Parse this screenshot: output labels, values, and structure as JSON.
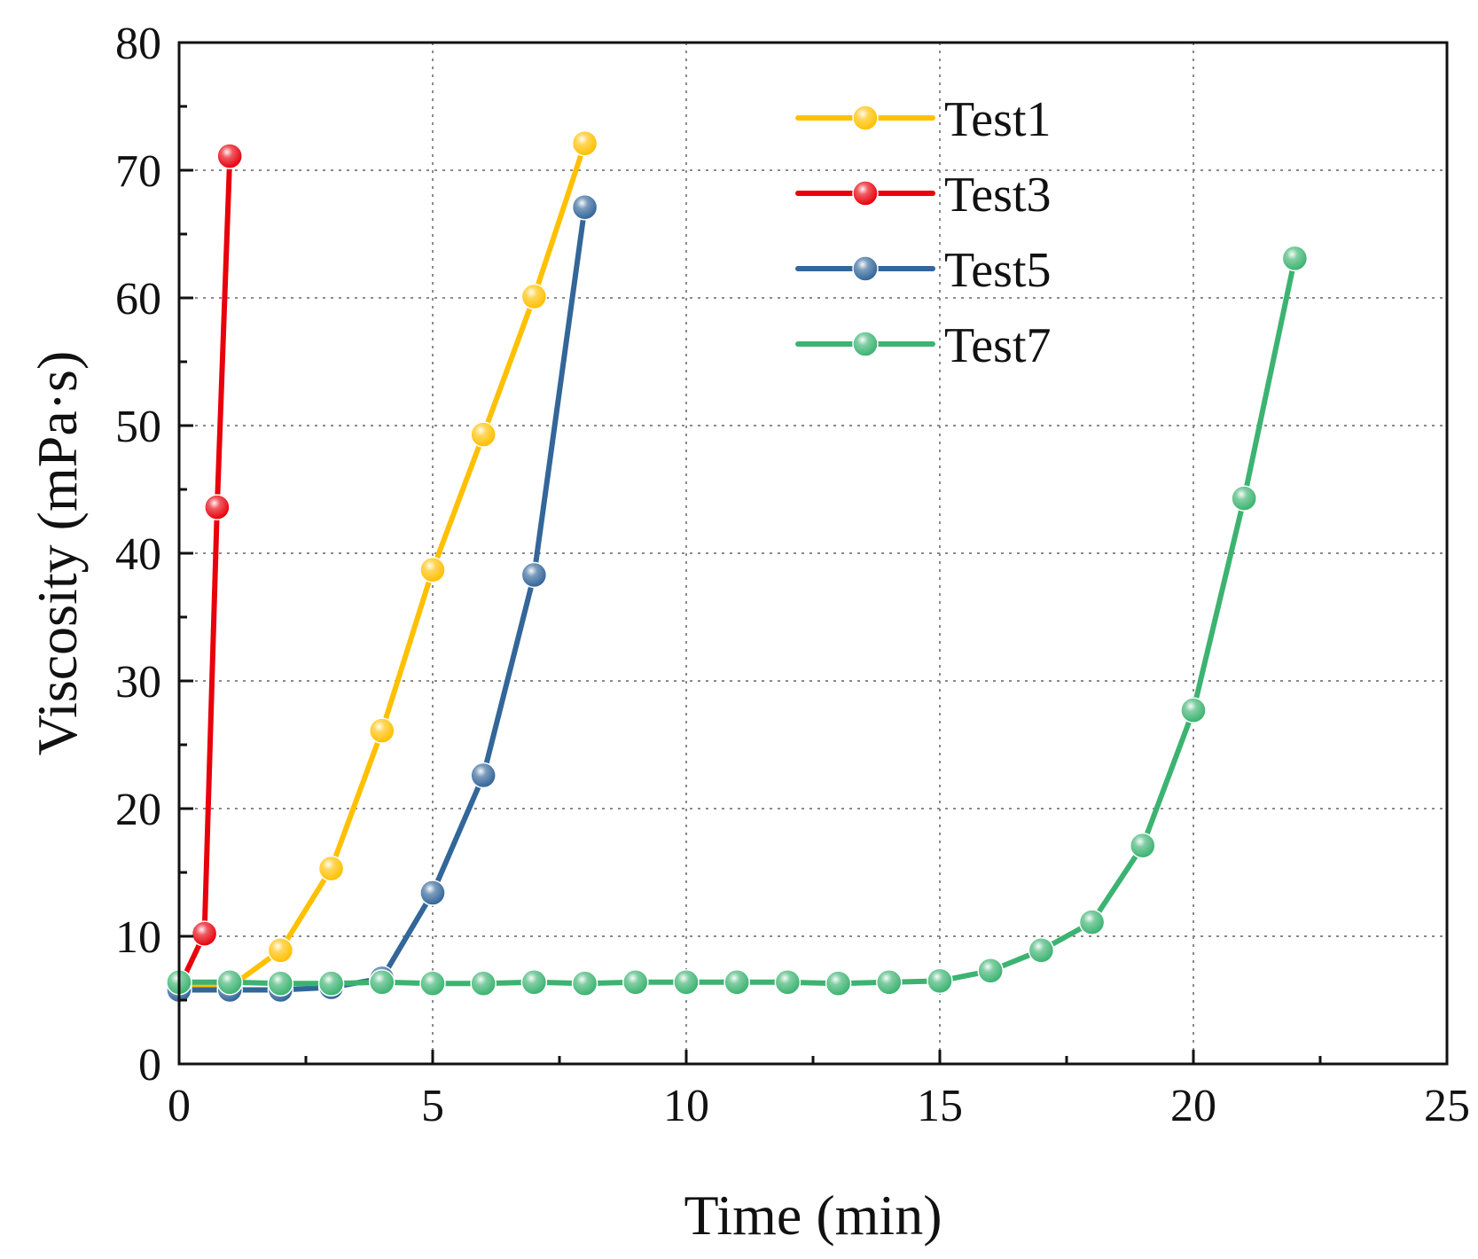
{
  "chart_data": {
    "type": "line",
    "xlabel": "Time (min)",
    "ylabel": "Viscosity (mPa·s)",
    "xlim": [
      0,
      25
    ],
    "ylim": [
      0,
      80
    ],
    "xticks": [
      0,
      5,
      10,
      15,
      20,
      25
    ],
    "yticks": [
      0,
      10,
      20,
      30,
      40,
      50,
      60,
      70,
      80
    ],
    "grid": true,
    "legend_position": "top-right",
    "series": [
      {
        "name": "Test1",
        "color": "#FFC000",
        "x": [
          0,
          1,
          2,
          3,
          4,
          5,
          6,
          7,
          8
        ],
        "y": [
          6.0,
          6.0,
          8.9,
          15.3,
          26.1,
          38.7,
          49.3,
          60.1,
          72.1
        ]
      },
      {
        "name": "Test3",
        "color": "#E8000B",
        "x": [
          0,
          0.5,
          0.75,
          1
        ],
        "y": [
          6.0,
          10.2,
          43.6,
          71.1
        ]
      },
      {
        "name": "Test5",
        "color": "#336699",
        "x": [
          0,
          1,
          2,
          3,
          4,
          5,
          6,
          7,
          8
        ],
        "y": [
          5.8,
          5.8,
          5.8,
          6.0,
          6.7,
          13.4,
          22.6,
          38.3,
          67.1
        ]
      },
      {
        "name": "Test7",
        "color": "#3CB371",
        "x": [
          0,
          1,
          2,
          3,
          4,
          5,
          6,
          7,
          8,
          9,
          10,
          11,
          12,
          13,
          14,
          15,
          16,
          17,
          18,
          19,
          20,
          21,
          22
        ],
        "y": [
          6.4,
          6.4,
          6.3,
          6.3,
          6.4,
          6.3,
          6.3,
          6.4,
          6.3,
          6.4,
          6.4,
          6.4,
          6.4,
          6.3,
          6.4,
          6.5,
          7.3,
          8.9,
          11.1,
          17.1,
          27.7,
          44.3,
          63.1
        ]
      }
    ]
  }
}
